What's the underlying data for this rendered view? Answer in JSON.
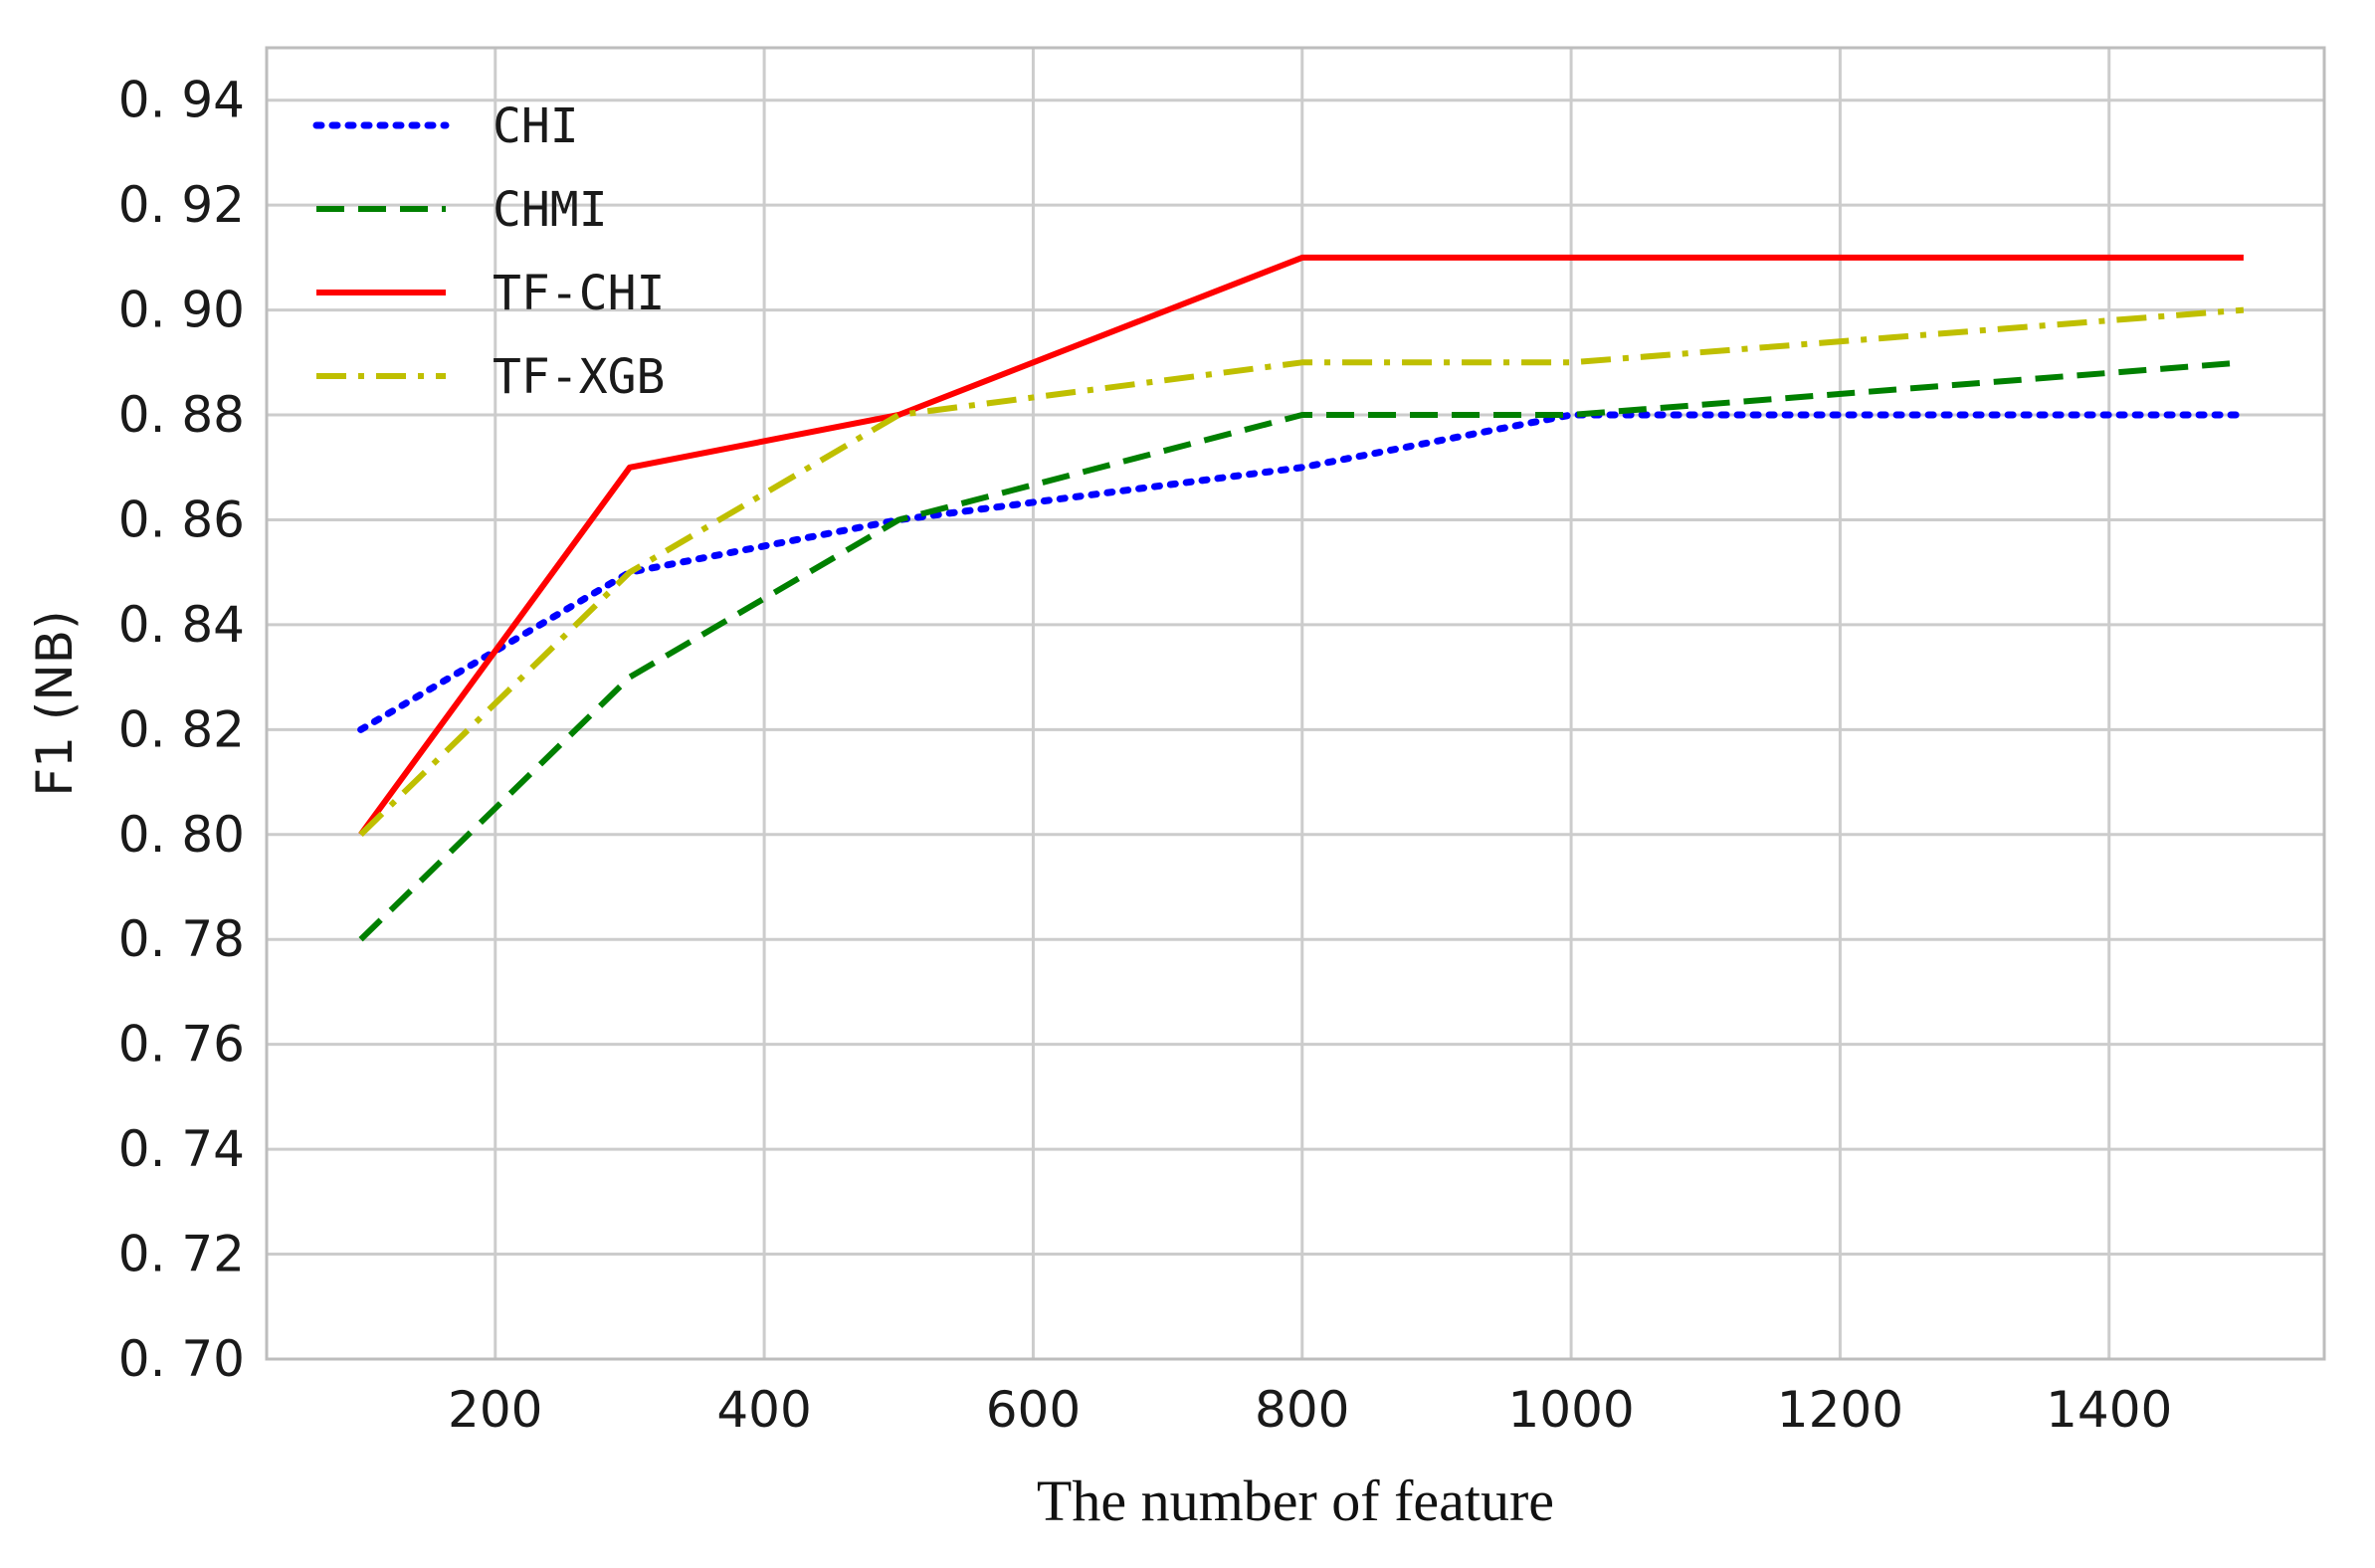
{
  "chart_data": {
    "type": "line",
    "title": "",
    "xlabel": "The number of feature",
    "ylabel": "F1 (NB)",
    "xlim": [
      30,
      1560
    ],
    "ylim": [
      0.7,
      0.95
    ],
    "xticks": [
      200,
      400,
      600,
      800,
      1000,
      1200,
      1400
    ],
    "xtick_labels": [
      "200",
      "400",
      "600",
      "800",
      "1000",
      "1200",
      "1400"
    ],
    "yticks": [
      0.7,
      0.72,
      0.74,
      0.76,
      0.78,
      0.8,
      0.82,
      0.84,
      0.86,
      0.88,
      0.9,
      0.92,
      0.94
    ],
    "ytick_labels": [
      "0. 70",
      "0. 72",
      "0. 74",
      "0. 76",
      "0. 78",
      "0. 80",
      "0. 82",
      "0. 84",
      "0. 86",
      "0. 88",
      "0. 90",
      "0. 92",
      "0. 94"
    ],
    "grid": true,
    "legend_position": "top-left",
    "x": [
      100,
      300,
      500,
      800,
      1000,
      1500
    ],
    "series": [
      {
        "name": "CHI",
        "values": [
          0.82,
          0.85,
          0.86,
          0.87,
          0.88,
          0.88
        ],
        "color": "#0000ff",
        "style": "dotted"
      },
      {
        "name": "CHMI",
        "values": [
          0.78,
          0.83,
          0.86,
          0.88,
          0.88,
          0.89
        ],
        "color": "#008000",
        "style": "dashed"
      },
      {
        "name": "TF-CHI",
        "values": [
          0.8,
          0.87,
          0.88,
          0.91,
          0.91,
          0.91
        ],
        "color": "#ff0000",
        "style": "solid"
      },
      {
        "name": "TF-XGB",
        "values": [
          0.8,
          0.85,
          0.88,
          0.89,
          0.89,
          0.9
        ],
        "color": "#bfbf00",
        "style": "dashdot"
      }
    ]
  }
}
